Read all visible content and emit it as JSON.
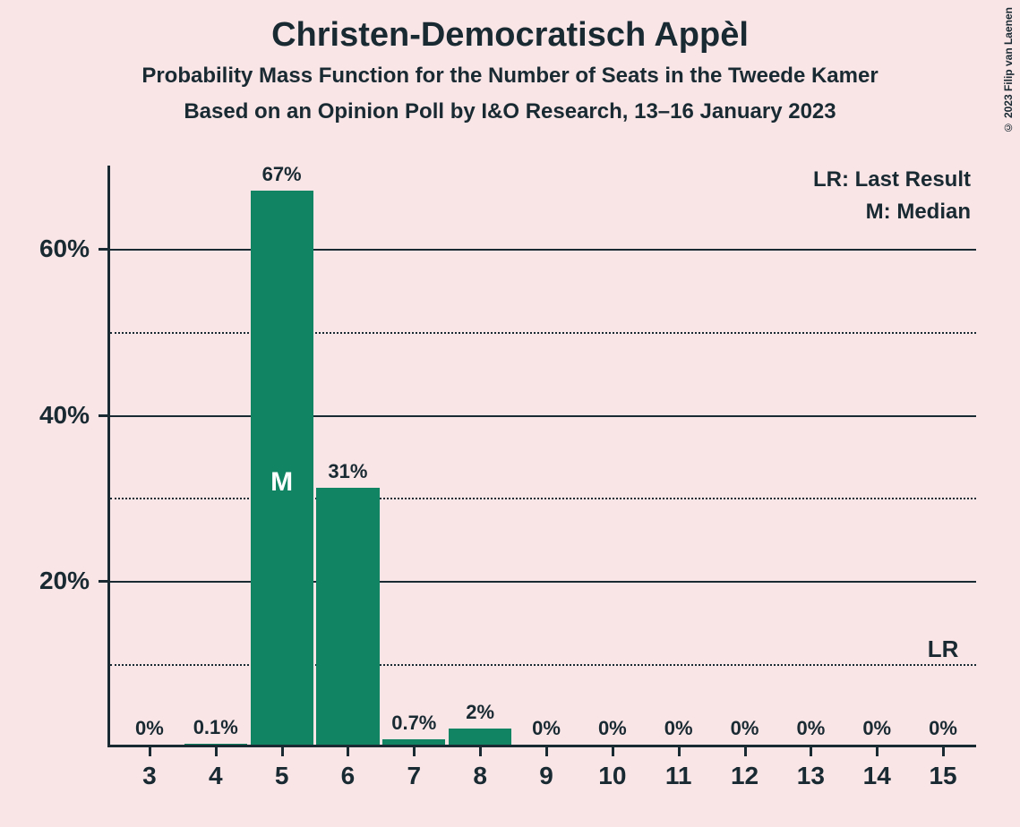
{
  "title": "Christen-Democratisch Appèl",
  "subtitle1": "Probability Mass Function for the Number of Seats in the Tweede Kamer",
  "subtitle2": "Based on an Opinion Poll by I&O Research, 13–16 January 2023",
  "copyright": "© 2023 Filip van Laenen",
  "legend": {
    "lr": "LR: Last Result",
    "m": "M: Median"
  },
  "chart": {
    "type": "bar",
    "background_color": "#f9e5e6",
    "bar_color": "#118463",
    "axis_color": "#1a2a33",
    "grid_major_color": "#1a2a33",
    "grid_minor_color": "#1a2a33",
    "text_color": "#1a2a33",
    "median_label_color": "#ffffff",
    "title_fontsize": 38,
    "subtitle_fontsize": 24,
    "ytick_fontsize": 28,
    "xtick_fontsize": 28,
    "barlabel_fontsize": 22,
    "legend_fontsize": 24,
    "bar_width_ratio": 0.95,
    "ylim": [
      0,
      70
    ],
    "ytick_major": [
      20,
      40,
      60
    ],
    "ytick_minor": [
      10,
      30,
      50
    ],
    "ytick_labels": {
      "20": "20%",
      "40": "40%",
      "60": "60%"
    },
    "categories": [
      3,
      4,
      5,
      6,
      7,
      8,
      9,
      10,
      11,
      12,
      13,
      14,
      15
    ],
    "values": [
      0,
      0.1,
      67,
      31,
      0.7,
      2,
      0,
      0,
      0,
      0,
      0,
      0,
      0
    ],
    "value_labels": [
      "0%",
      "0.1%",
      "67%",
      "31%",
      "0.7%",
      "2%",
      "0%",
      "0%",
      "0%",
      "0%",
      "0%",
      "0%",
      "0%"
    ],
    "median_index": 2,
    "median_symbol": "M",
    "lr_index": 12,
    "lr_symbol": "LR",
    "lr_y_value": 10
  }
}
